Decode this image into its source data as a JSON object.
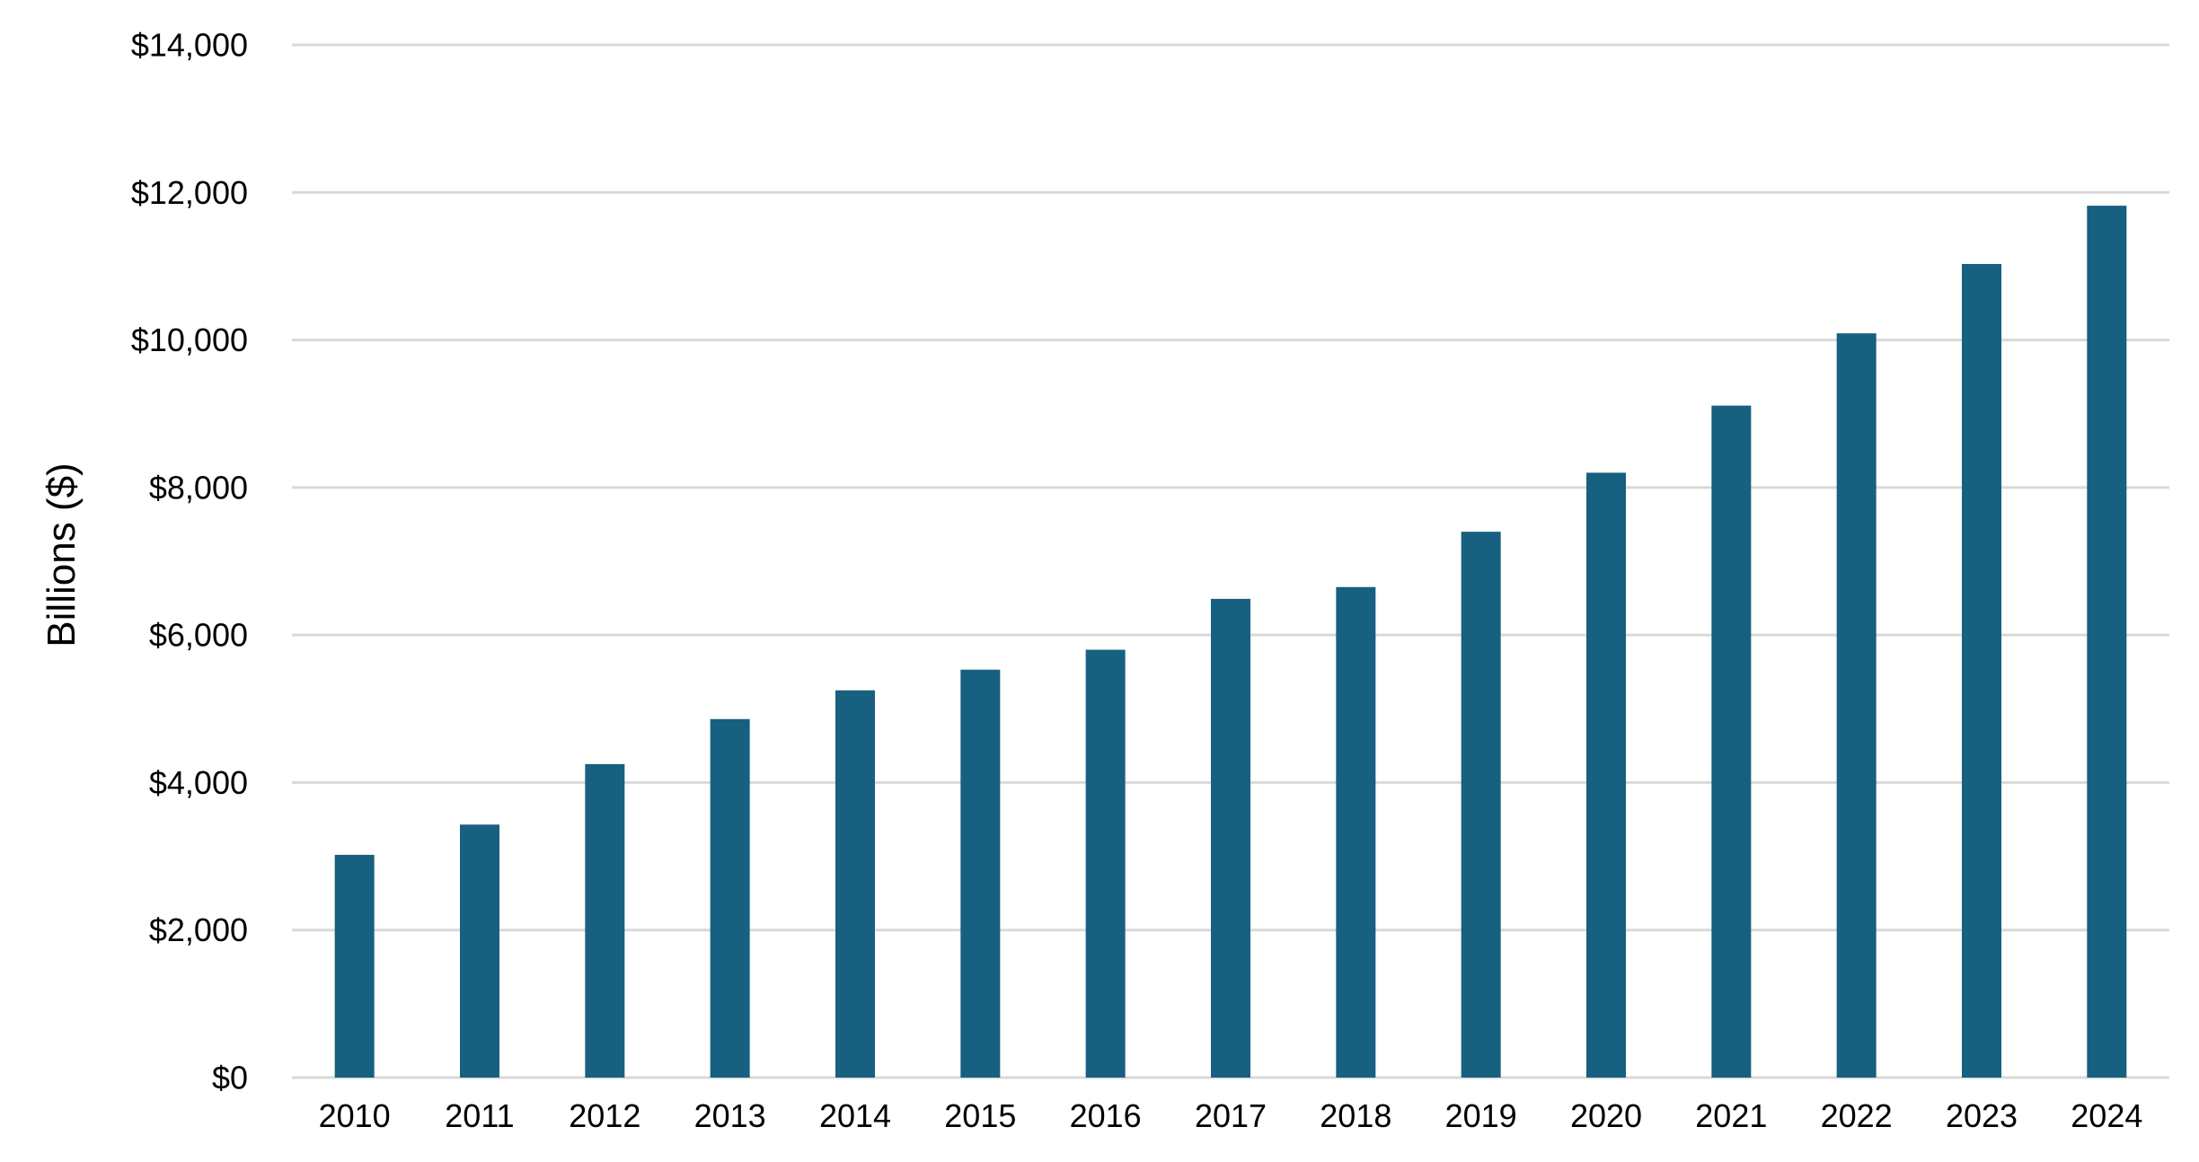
{
  "chart_data": {
    "type": "bar",
    "title": "",
    "xlabel": "",
    "ylabel": "Billions ($)",
    "categories": [
      "2010",
      "2011",
      "2012",
      "2013",
      "2014",
      "2015",
      "2016",
      "2017",
      "2018",
      "2019",
      "2020",
      "2021",
      "2022",
      "2023",
      "2024"
    ],
    "values": [
      3020,
      3430,
      4250,
      4860,
      5250,
      5530,
      5800,
      6490,
      6650,
      7400,
      8200,
      9110,
      10090,
      11030,
      11820
    ],
    "ylim": [
      0,
      14000
    ],
    "yticks": [
      0,
      2000,
      4000,
      6000,
      8000,
      10000,
      12000,
      14000
    ],
    "ytick_labels": [
      "$0",
      "$2,000",
      "$4,000",
      "$6,000",
      "$8,000",
      "$10,000",
      "$12,000",
      "$14,000"
    ],
    "grid": true,
    "legend": "none",
    "bar_color": "#17607f",
    "grid_color": "#d9d9d9"
  }
}
